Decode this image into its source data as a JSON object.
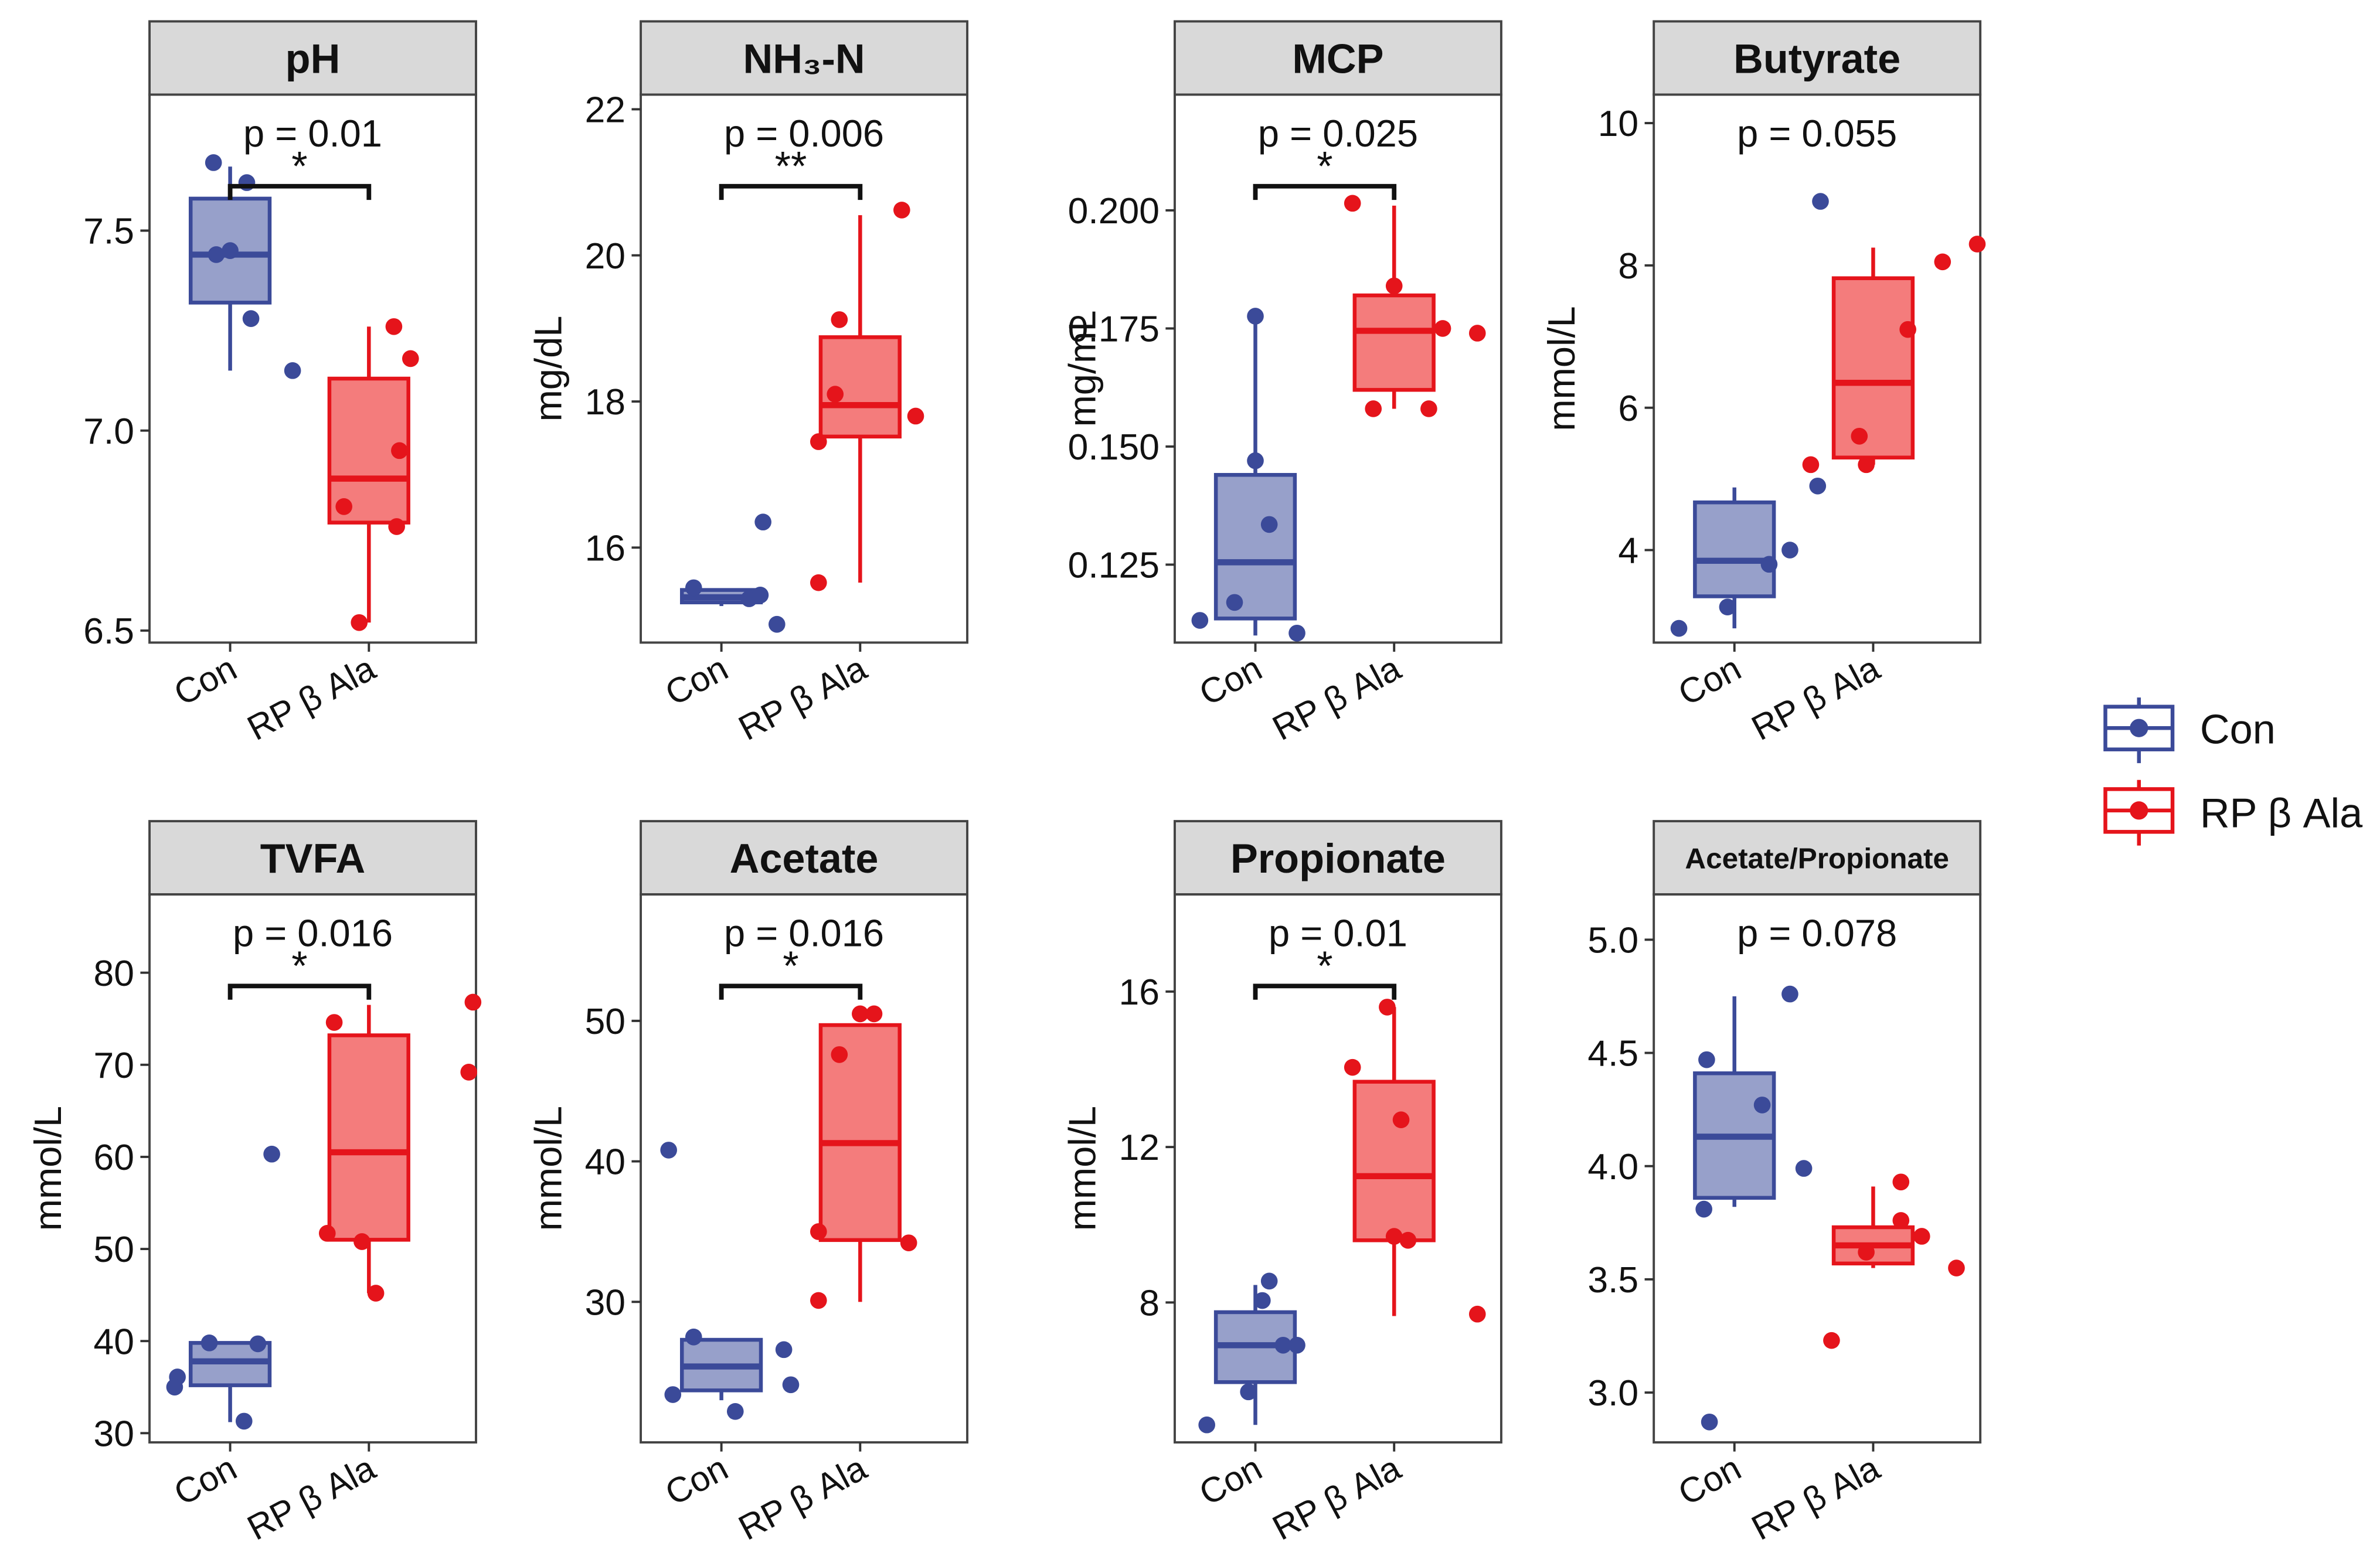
{
  "figure": {
    "groups": [
      "Con",
      "RP β Ala"
    ],
    "colors": {
      "con_stroke": "#3b4a99",
      "con_fill": "#97a0ca",
      "rp_stroke": "#e5141b",
      "rp_fill": "#f47c7c",
      "strip_bg": "#d9d9d9",
      "panel_border": "#444444"
    },
    "legend": {
      "items": [
        "Con",
        "RP β Ala"
      ],
      "position": "right"
    }
  },
  "chart_data": [
    {
      "type": "box",
      "title": "pH",
      "ylabel": "",
      "ylim": [
        6.47,
        7.84
      ],
      "ticks": [
        6.5,
        7.0,
        7.5
      ],
      "tick_labels": [
        "6.5",
        "7.0",
        "7.5"
      ],
      "p_label": "p = 0.01",
      "sig": "*",
      "bracket": true,
      "series": [
        {
          "name": "Con",
          "q1": 7.32,
          "median": 7.44,
          "q3": 7.58,
          "whisker_low": 7.15,
          "whisker_high": 7.66,
          "points": [
            [
              0.88,
              7.67
            ],
            [
              1.12,
              7.62
            ],
            [
              0.9,
              7.44
            ],
            [
              1.0,
              7.45
            ],
            [
              1.15,
              7.28
            ],
            [
              1.45,
              7.15
            ]
          ]
        },
        {
          "name": "RP β Ala",
          "q1": 6.77,
          "median": 6.88,
          "q3": 7.13,
          "whisker_low": 6.52,
          "whisker_high": 7.26,
          "points": [
            [
              2.18,
              7.26
            ],
            [
              2.3,
              7.18
            ],
            [
              2.22,
              6.95
            ],
            [
              1.82,
              6.81
            ],
            [
              2.2,
              6.76
            ],
            [
              1.93,
              6.52
            ]
          ]
        }
      ]
    },
    {
      "type": "box",
      "title": "NH₃-N",
      "ylabel": "mg/dL",
      "ylim": [
        14.7,
        22.2
      ],
      "ticks": [
        16,
        18,
        20,
        22
      ],
      "tick_labels": [
        "16",
        "18",
        "20",
        "22"
      ],
      "p_label": "p = 0.006",
      "sig": "**",
      "bracket": true,
      "series": [
        {
          "name": "Con",
          "q1": 15.25,
          "median": 15.32,
          "q3": 15.42,
          "whisker_low": 15.2,
          "whisker_high": 15.42,
          "points": [
            [
              0.8,
              15.45
            ],
            [
              1.2,
              15.3
            ],
            [
              1.28,
              15.35
            ],
            [
              1.3,
              16.35
            ],
            [
              1.4,
              14.95
            ]
          ]
        },
        {
          "name": "RP β Ala",
          "q1": 17.52,
          "median": 17.95,
          "q3": 18.88,
          "whisker_low": 15.52,
          "whisker_high": 20.55,
          "points": [
            [
              2.3,
              20.62
            ],
            [
              1.85,
              19.12
            ],
            [
              1.82,
              18.1
            ],
            [
              2.4,
              17.8
            ],
            [
              1.7,
              17.45
            ],
            [
              1.7,
              15.52
            ]
          ]
        }
      ]
    },
    {
      "type": "box",
      "title": "MCP",
      "ylabel": "mg/mL",
      "ylim": [
        0.1085,
        0.2245
      ],
      "ticks": [
        0.125,
        0.15,
        0.175,
        0.2
      ],
      "tick_labels": [
        "0.125",
        "0.150",
        "0.175",
        "0.200"
      ],
      "p_label": "p = 0.025",
      "sig": "*",
      "bracket": true,
      "series": [
        {
          "name": "Con",
          "q1": 0.1136,
          "median": 0.1255,
          "q3": 0.144,
          "whisker_low": 0.11,
          "whisker_high": 0.1775,
          "points": [
            [
              1.0,
              0.1776
            ],
            [
              1.0,
              0.147
            ],
            [
              1.1,
              0.1335
            ],
            [
              0.85,
              0.117
            ],
            [
              0.6,
              0.1132
            ],
            [
              1.3,
              0.1105
            ]
          ]
        },
        {
          "name": "RP β Ala",
          "q1": 0.162,
          "median": 0.1745,
          "q3": 0.182,
          "whisker_low": 0.158,
          "whisker_high": 0.201,
          "points": [
            [
              1.7,
              0.2015
            ],
            [
              2.0,
              0.184
            ],
            [
              2.35,
              0.175
            ],
            [
              2.6,
              0.174
            ],
            [
              1.85,
              0.158
            ],
            [
              2.25,
              0.158
            ]
          ]
        }
      ]
    },
    {
      "type": "box",
      "title": "Butyrate",
      "ylabel": "mmol/L",
      "ylim": [
        2.7,
        10.4
      ],
      "ticks": [
        4,
        6,
        8,
        10
      ],
      "tick_labels": [
        "4",
        "6",
        "8",
        "10"
      ],
      "p_label": "p = 0.055",
      "sig": "",
      "bracket": false,
      "series": [
        {
          "name": "Con",
          "q1": 3.35,
          "median": 3.85,
          "q3": 4.67,
          "whisker_low": 2.9,
          "whisker_high": 4.88,
          "points": [
            [
              1.62,
              8.9
            ],
            [
              1.6,
              4.9
            ],
            [
              1.4,
              4.0
            ],
            [
              1.25,
              3.8
            ],
            [
              0.95,
              3.2
            ],
            [
              0.6,
              2.9
            ]
          ]
        },
        {
          "name": "RP β Ala",
          "q1": 5.3,
          "median": 6.35,
          "q3": 7.82,
          "whisker_low": 5.2,
          "whisker_high": 8.25,
          "points": [
            [
              2.75,
              8.3
            ],
            [
              2.5,
              8.05
            ],
            [
              2.25,
              7.1
            ],
            [
              1.9,
              5.6
            ],
            [
              1.55,
              5.2
            ],
            [
              1.95,
              5.2
            ]
          ]
        }
      ]
    },
    {
      "type": "box",
      "title": "TVFA",
      "ylabel": "mmol/L",
      "ylim": [
        29,
        88.5
      ],
      "ticks": [
        30,
        40,
        50,
        60,
        70,
        80
      ],
      "tick_labels": [
        "30",
        "40",
        "50",
        "60",
        "70",
        "80"
      ],
      "p_label": "p = 0.016",
      "sig": "*",
      "bracket": true,
      "series": [
        {
          "name": "Con",
          "q1": 35.2,
          "median": 37.8,
          "q3": 39.8,
          "whisker_low": 31.2,
          "whisker_high": 39.8,
          "points": [
            [
              1.3,
              60.3
            ],
            [
              0.85,
              39.8
            ],
            [
              1.2,
              39.7
            ],
            [
              0.62,
              36.1
            ],
            [
              0.6,
              35.0
            ],
            [
              1.1,
              31.3
            ]
          ]
        },
        {
          "name": "RP β Ala",
          "q1": 51.0,
          "median": 60.5,
          "q3": 73.2,
          "whisker_low": 45.2,
          "whisker_high": 76.5,
          "points": [
            [
              2.75,
              76.8
            ],
            [
              1.75,
              74.6
            ],
            [
              2.72,
              69.2
            ],
            [
              1.7,
              51.7
            ],
            [
              1.95,
              50.8
            ],
            [
              2.05,
              45.2
            ]
          ]
        }
      ]
    },
    {
      "type": "box",
      "title": "Acetate",
      "ylabel": "mmol/L",
      "ylim": [
        20,
        59
      ],
      "ticks": [
        30,
        40,
        50
      ],
      "tick_labels": [
        "30",
        "40",
        "50"
      ],
      "p_label": "p = 0.016",
      "sig": "*",
      "bracket": true,
      "series": [
        {
          "name": "Con",
          "q1": 23.7,
          "median": 25.4,
          "q3": 27.3,
          "whisker_low": 23.0,
          "whisker_high": 27.3,
          "points": [
            [
              0.62,
              40.8
            ],
            [
              0.8,
              27.5
            ],
            [
              1.45,
              26.6
            ],
            [
              1.5,
              24.1
            ],
            [
              0.65,
              23.4
            ],
            [
              1.1,
              22.2
            ]
          ]
        },
        {
          "name": "RP β Ala",
          "q1": 34.4,
          "median": 41.3,
          "q3": 49.7,
          "whisker_low": 30.0,
          "whisker_high": 49.7,
          "points": [
            [
              2.0,
              50.5
            ],
            [
              2.1,
              50.5
            ],
            [
              1.85,
              47.6
            ],
            [
              1.7,
              35.0
            ],
            [
              2.35,
              34.2
            ],
            [
              1.7,
              30.1
            ]
          ]
        }
      ]
    },
    {
      "type": "box",
      "title": "Propionate",
      "ylabel": "mmol/L",
      "ylim": [
        4.4,
        18.5
      ],
      "ticks": [
        8,
        12,
        16
      ],
      "tick_labels": [
        "8",
        "12",
        "16"
      ],
      "p_label": "p = 0.01",
      "sig": "*",
      "bracket": true,
      "series": [
        {
          "name": "Con",
          "q1": 5.95,
          "median": 6.9,
          "q3": 7.75,
          "whisker_low": 4.85,
          "whisker_high": 8.45,
          "points": [
            [
              1.1,
              8.55
            ],
            [
              1.05,
              8.05
            ],
            [
              1.2,
              6.9
            ],
            [
              1.3,
              6.9
            ],
            [
              0.95,
              5.7
            ],
            [
              0.65,
              4.85
            ]
          ]
        },
        {
          "name": "RP β Ala",
          "q1": 9.6,
          "median": 11.25,
          "q3": 13.68,
          "whisker_low": 7.65,
          "whisker_high": 15.6,
          "points": [
            [
              1.95,
              15.6
            ],
            [
              1.7,
              14.05
            ],
            [
              2.05,
              12.7
            ],
            [
              2.0,
              9.7
            ],
            [
              2.1,
              9.6
            ],
            [
              2.6,
              7.7
            ]
          ]
        }
      ]
    },
    {
      "type": "box",
      "title": "Acetate/Propionate",
      "ylabel": "",
      "ylim": [
        2.78,
        5.2
      ],
      "ticks": [
        3.0,
        3.5,
        4.0,
        4.5,
        5.0
      ],
      "tick_labels": [
        "3.0",
        "3.5",
        "4.0",
        "4.5",
        "5.0"
      ],
      "p_label": "p = 0.078",
      "sig": "",
      "bracket": false,
      "series": [
        {
          "name": "Con",
          "q1": 3.86,
          "median": 4.13,
          "q3": 4.41,
          "whisker_low": 3.82,
          "whisker_high": 4.75,
          "points": [
            [
              1.4,
              4.76
            ],
            [
              0.8,
              4.47
            ],
            [
              1.2,
              4.27
            ],
            [
              1.5,
              3.99
            ],
            [
              0.78,
              3.81
            ],
            [
              0.82,
              2.87
            ]
          ]
        },
        {
          "name": "RP β Ala",
          "q1": 3.57,
          "median": 3.65,
          "q3": 3.73,
          "whisker_low": 3.55,
          "whisker_high": 3.91,
          "points": [
            [
              2.2,
              3.93
            ],
            [
              2.2,
              3.76
            ],
            [
              2.35,
              3.69
            ],
            [
              1.95,
              3.62
            ],
            [
              2.6,
              3.55
            ],
            [
              1.7,
              3.23
            ]
          ]
        }
      ]
    }
  ]
}
